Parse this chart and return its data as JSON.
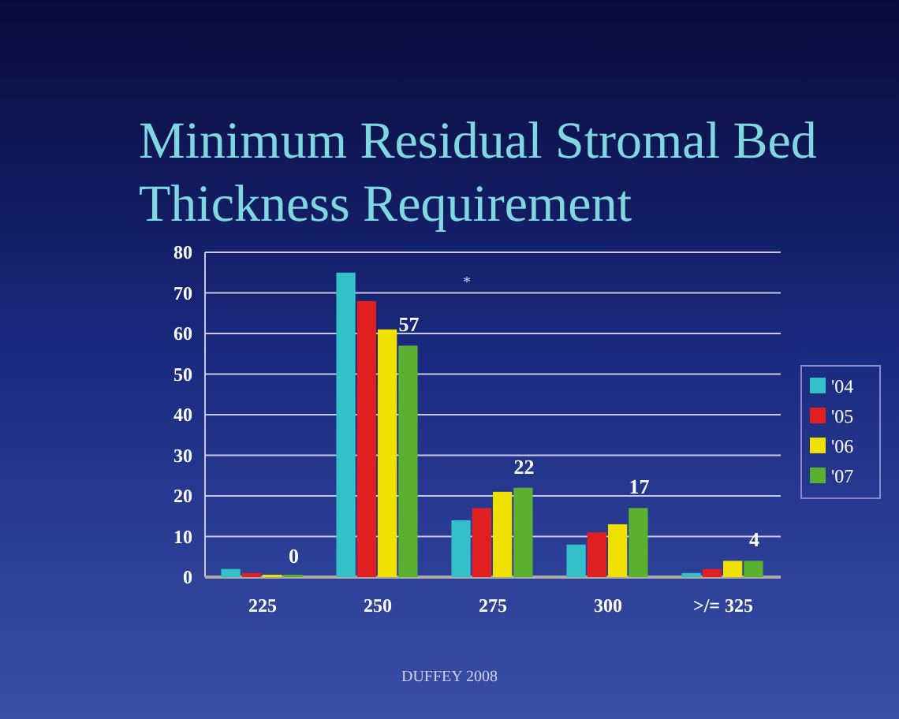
{
  "chart_data": {
    "type": "bar",
    "title": "Minimum Residual Stromal Bed Thickness Requirement",
    "categories": [
      "225",
      "250",
      "275",
      "300",
      ">/= 325"
    ],
    "series": [
      {
        "name": "'04",
        "color": "#33c0c8",
        "values": [
          2,
          75,
          14,
          8,
          1
        ]
      },
      {
        "name": "'05",
        "color": "#e02020",
        "values": [
          1,
          68,
          17,
          11,
          2
        ]
      },
      {
        "name": "'06",
        "color": "#f0e000",
        "values": [
          0.5,
          61,
          21,
          13,
          4
        ]
      },
      {
        "name": "'07",
        "color": "#5cb030",
        "values": [
          0,
          57,
          22,
          17,
          4
        ],
        "value_labels": [
          "0",
          "57",
          "22",
          "17",
          "4"
        ]
      }
    ],
    "ylim": [
      0,
      80
    ],
    "yticks": [
      0,
      10,
      20,
      30,
      40,
      50,
      60,
      70,
      80
    ],
    "grid": "y",
    "legend": "right",
    "annotations": [
      "*",
      "DUFFEY 2008"
    ]
  }
}
